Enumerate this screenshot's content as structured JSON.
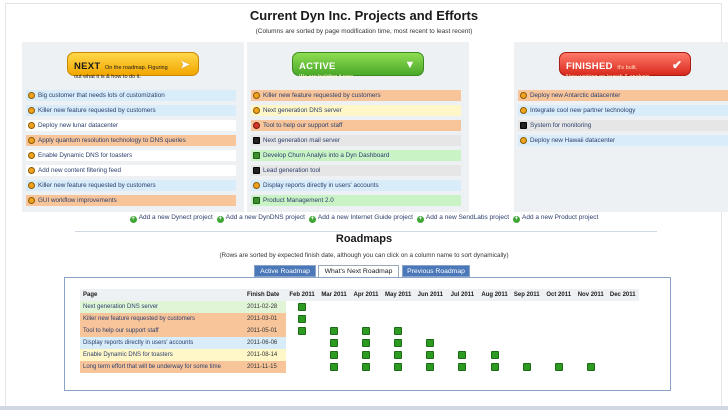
{
  "page": {
    "title": "Current Dyn Inc. Projects and Efforts",
    "subtitle": "(Columns are sorted by page modification time, most recent to least recent)"
  },
  "columns": [
    {
      "key": "next",
      "banner": {
        "big": "NEXT",
        "small": "On the roadmap. Figuring",
        "line2": "out what it is & how to do it."
      },
      "arrow_icon": "right-arrow-icon",
      "items": [
        {
          "label": "Big customer that needs lots of customization",
          "bg": "blue",
          "icon": "orange"
        },
        {
          "label": "Killer new feature requested by customers",
          "bg": "blue",
          "icon": "orange"
        },
        {
          "label": "Deploy new lunar datacenter",
          "bg": "white",
          "icon": "orange"
        },
        {
          "label": "Apply quantum resolution technology to DNS queries",
          "bg": "orange",
          "icon": "orange"
        },
        {
          "label": "Enable Dynamic DNS for toasters",
          "bg": "white",
          "icon": "orange"
        },
        {
          "label": "Add new content filtering feed",
          "bg": "white",
          "icon": "orange"
        },
        {
          "label": "Killer new feature requested by customers",
          "bg": "blue",
          "icon": "orange"
        },
        {
          "label": "GUI workflow improvements",
          "bg": "orange",
          "icon": "orange"
        }
      ]
    },
    {
      "key": "active",
      "banner": {
        "big": "ACTIVE",
        "small": "We are building it now.",
        "line2": ""
      },
      "arrow_icon": "down-arrow-icon",
      "items": [
        {
          "label": "Killer new feature requested by customers",
          "bg": "orange",
          "icon": "orange"
        },
        {
          "label": "Next generation DNS server",
          "bg": "yellow",
          "icon": "orange"
        },
        {
          "label": "Tool to help our support staff",
          "bg": "orange",
          "icon": "red"
        },
        {
          "label": "Next generation mail server",
          "bg": "gray",
          "icon": "black"
        },
        {
          "label": "Develop Churn Analyis into a Dyn Dashboard",
          "bg": "green",
          "icon": "green"
        },
        {
          "label": "Lead generation tool",
          "bg": "gray",
          "icon": "black"
        },
        {
          "label": "Display reports directly in users' accounts",
          "bg": "blue",
          "icon": "orange"
        },
        {
          "label": "Product Management 2.0",
          "bg": "green",
          "icon": "green"
        }
      ]
    },
    {
      "key": "finished",
      "banner": {
        "big": "FINISHED",
        "small": "It's built.",
        "line2": "Now working on launch & analysis."
      },
      "arrow_icon": "checkmark-icon",
      "items": [
        {
          "label": "Deploy new Antarctic datacenter",
          "bg": "orange",
          "icon": "orange"
        },
        {
          "label": "Integrate cool new partner technology",
          "bg": "blue",
          "icon": "orange"
        },
        {
          "label": "System for monitoring",
          "bg": "gray",
          "icon": "black"
        },
        {
          "label": "Deploy new Hawaii datacenter",
          "bg": "blue",
          "icon": "orange"
        }
      ]
    }
  ],
  "add_links": [
    "Add a new Dynect project",
    "Add a new DynDNS project",
    "Add a new Internet Guide project",
    "Add a new SendLabs project",
    "Add a new Product project"
  ],
  "roadmaps": {
    "title": "Roadmaps",
    "subtitle": "(Rows are sorted by expected finish date, although you can click on a column name to sort dynamically)",
    "tabs": [
      "Active Roadmap",
      "What's Next Roadmap",
      "Previous Roadmap"
    ],
    "selected_tab": "What's Next Roadmap",
    "table": {
      "headers": [
        "Page",
        "Finish Date",
        "Feb 2011",
        "Mar 2011",
        "Apr 2011",
        "May 2011",
        "Jun 2011",
        "Jul 2011",
        "Aug 2011",
        "Sep 2011",
        "Oct 2011",
        "Nov 2011",
        "Dec 2011"
      ],
      "rows": [
        {
          "page": "Next generation DNS server",
          "finish": "2011-02-28",
          "bg": "green",
          "marks": [
            1,
            0,
            0,
            0,
            0,
            0,
            0,
            0,
            0,
            0,
            0
          ]
        },
        {
          "page": "Killer new feature requested by customers",
          "finish": "2011-03-01",
          "bg": "orange",
          "marks": [
            1,
            0,
            0,
            0,
            0,
            0,
            0,
            0,
            0,
            0,
            0
          ]
        },
        {
          "page": "Tool to help our support staff",
          "finish": "2011-05-01",
          "bg": "orange",
          "marks": [
            1,
            1,
            1,
            1,
            0,
            0,
            0,
            0,
            0,
            0,
            0
          ]
        },
        {
          "page": "Display reports directly in users' accounts",
          "finish": "2011-06-06",
          "bg": "blue",
          "marks": [
            0,
            1,
            1,
            1,
            1,
            0,
            0,
            0,
            0,
            0,
            0
          ]
        },
        {
          "page": "Enable Dynamic DNS for toasters",
          "finish": "2011-08-14",
          "bg": "yellow",
          "marks": [
            0,
            1,
            1,
            1,
            1,
            1,
            1,
            0,
            0,
            0,
            0
          ]
        },
        {
          "page": "Long term effort that will be underway for some time",
          "finish": "2011-11-15",
          "bg": "orange",
          "marks": [
            0,
            1,
            1,
            1,
            1,
            1,
            1,
            1,
            1,
            1,
            0
          ]
        }
      ]
    }
  }
}
